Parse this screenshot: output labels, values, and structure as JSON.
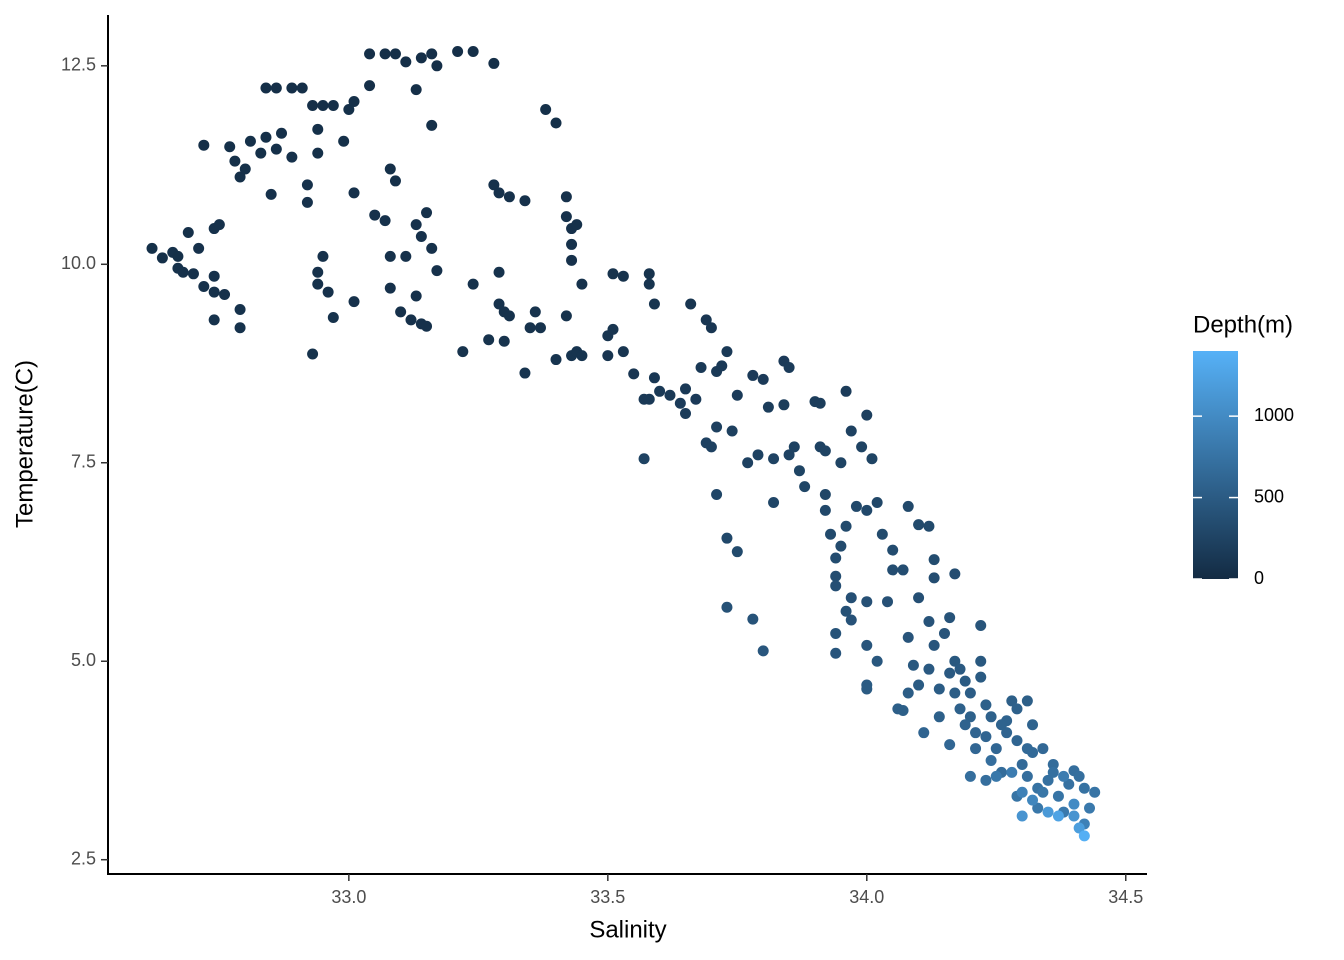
{
  "chart_data": {
    "type": "scatter",
    "x_label": "Salinity",
    "y_label": "Temperature(C)",
    "legend_title": "Depth(m)",
    "xlim": [
      32.535,
      34.541
    ],
    "ylim": [
      2.32,
      13.14
    ],
    "xticks": [
      {
        "value": 33,
        "label": "33.0"
      },
      33.5,
      {
        "value": 34,
        "label": "34.0"
      },
      34.5
    ],
    "yticks": [
      2.5,
      {
        "value": 5,
        "label": "5.0"
      },
      7.5,
      {
        "value": 10,
        "label": "10.0"
      },
      12.5
    ],
    "clim": [
      0,
      1400
    ],
    "cticks": [
      0,
      500,
      1000
    ],
    "color_low": "#132B43",
    "color_high": "#56B1F7",
    "x": [
      32.62,
      32.64,
      32.66,
      32.67,
      32.68,
      32.67,
      32.69,
      32.7,
      32.71,
      32.72,
      32.72,
      32.74,
      32.75,
      32.74,
      32.76,
      32.74,
      32.74,
      32.79,
      32.79,
      32.77,
      32.78,
      32.79,
      32.8,
      32.81,
      32.83,
      32.84,
      32.86,
      32.87,
      32.84,
      32.86,
      32.89,
      32.91,
      32.85,
      32.89,
      32.92,
      32.92,
      32.93,
      32.95,
      32.97,
      32.94,
      32.94,
      32.99,
      33.0,
      33.01,
      32.94,
      32.94,
      32.95,
      32.93,
      32.96,
      32.97,
      33.01,
      33.01,
      33.04,
      33.04,
      33.07,
      33.09,
      33.11,
      33.13,
      33.14,
      33.16,
      33.17,
      33.21,
      33.24,
      33.28,
      33.16,
      33.05,
      33.07,
      33.08,
      33.08,
      33.08,
      33.09,
      33.11,
      33.1,
      33.13,
      33.12,
      33.14,
      33.15,
      33.13,
      33.14,
      33.15,
      33.16,
      33.17,
      33.28,
      33.29,
      33.31,
      33.34,
      33.22,
      33.24,
      33.27,
      33.29,
      33.29,
      33.3,
      33.31,
      33.3,
      33.35,
      33.37,
      33.36,
      33.34,
      33.38,
      33.4,
      33.4,
      33.42,
      33.42,
      33.43,
      33.43,
      33.43,
      33.44,
      33.42,
      33.43,
      33.44,
      33.45,
      33.45,
      33.5,
      33.5,
      33.51,
      33.53,
      33.51,
      33.53,
      33.55,
      33.57,
      33.58,
      33.59,
      33.57,
      33.58,
      33.58,
      33.59,
      33.6,
      33.62,
      33.64,
      33.65,
      33.65,
      33.66,
      33.67,
      33.68,
      33.69,
      33.7,
      33.69,
      33.7,
      33.71,
      33.72,
      33.73,
      33.71,
      33.74,
      33.75,
      33.71,
      33.73,
      33.75,
      33.73,
      33.78,
      33.8,
      33.77,
      33.78,
      33.8,
      33.79,
      33.82,
      33.82,
      33.81,
      33.84,
      33.84,
      33.85,
      33.85,
      33.86,
      33.87,
      33.88,
      33.9,
      33.91,
      33.91,
      33.92,
      33.92,
      33.92,
      33.93,
      33.94,
      33.94,
      33.94,
      33.95,
      33.96,
      33.97,
      33.96,
      33.97,
      33.94,
      33.94,
      33.95,
      33.96,
      33.97,
      33.98,
      33.99,
      34.0,
      34.01,
      34.0,
      34.02,
      34.03,
      34.05,
      34.04,
      34.0,
      34.0,
      34.02,
      34.0,
      34.05,
      34.07,
      34.08,
      34.09,
      34.1,
      34.08,
      34.1,
      34.12,
      34.13,
      34.13,
      34.17,
      34.12,
      34.13,
      34.12,
      34.14,
      34.14,
      34.15,
      34.16,
      34.17,
      34.17,
      34.18,
      34.2,
      34.22,
      34.22,
      34.2,
      34.23,
      34.21,
      34.24,
      34.25,
      34.26,
      34.27,
      34.28,
      34.29,
      34.3,
      34.31,
      34.29,
      34.31,
      34.32,
      34.32,
      34.33,
      34.33,
      34.34,
      34.35,
      34.36,
      34.37,
      34.38,
      34.39,
      34.4,
      34.41,
      34.42,
      34.42,
      34.43,
      34.44,
      34.4,
      34.41,
      34.42,
      34.37,
      34.35,
      34.3,
      34.32,
      34.3,
      34.4,
      34.38,
      34.28,
      34.25,
      34.24,
      34.18,
      34.19,
      34.21,
      34.27,
      34.23,
      34.16,
      34.11,
      34.1,
      34.06,
      34.07,
      34.08,
      34.0,
      34.2,
      34.34,
      34.36,
      34.31,
      34.29,
      34.26,
      34.23,
      34.22,
      34.19,
      34.16
    ],
    "values": [
      10.2,
      10.08,
      10.15,
      9.95,
      9.9,
      10.1,
      10.4,
      9.88,
      10.2,
      9.72,
      11.5,
      10.45,
      10.5,
      9.65,
      9.62,
      9.85,
      9.3,
      9.2,
      9.43,
      11.48,
      11.3,
      11.1,
      11.2,
      11.55,
      11.4,
      11.6,
      11.45,
      11.65,
      12.22,
      12.22,
      12.22,
      12.22,
      10.88,
      11.35,
      10.78,
      11.0,
      12.0,
      12.0,
      12.0,
      11.7,
      11.4,
      11.55,
      11.95,
      12.05,
      9.9,
      9.75,
      10.1,
      8.87,
      9.65,
      9.33,
      10.9,
      9.53,
      12.25,
      12.65,
      12.65,
      12.65,
      12.55,
      12.2,
      12.6,
      12.65,
      12.5,
      12.68,
      12.68,
      12.53,
      11.75,
      10.62,
      10.55,
      10.1,
      9.7,
      11.2,
      11.05,
      10.1,
      9.4,
      9.6,
      9.3,
      9.25,
      9.22,
      10.5,
      10.35,
      10.65,
      10.2,
      9.92,
      11.0,
      10.9,
      10.85,
      10.8,
      8.9,
      9.75,
      9.05,
      9.9,
      9.5,
      9.4,
      9.35,
      9.03,
      9.2,
      9.2,
      9.4,
      8.63,
      11.95,
      11.78,
      8.8,
      10.85,
      10.6,
      10.45,
      10.25,
      10.05,
      10.5,
      9.35,
      8.85,
      8.9,
      8.85,
      9.75,
      9.1,
      8.85,
      9.18,
      8.9,
      9.88,
      9.85,
      8.62,
      8.3,
      8.3,
      8.57,
      7.55,
      9.88,
      9.75,
      9.5,
      8.4,
      8.35,
      8.25,
      8.43,
      8.12,
      9.5,
      8.3,
      8.7,
      9.3,
      9.2,
      7.75,
      7.7,
      8.65,
      8.72,
      8.9,
      7.95,
      7.9,
      8.35,
      7.1,
      6.55,
      6.38,
      5.68,
      5.53,
      5.13,
      7.5,
      8.6,
      8.55,
      7.6,
      7.55,
      7.0,
      8.2,
      8.23,
      8.78,
      8.7,
      7.6,
      7.7,
      7.4,
      7.2,
      8.27,
      8.25,
      7.7,
      7.65,
      7.1,
      6.9,
      6.6,
      6.3,
      6.07,
      5.95,
      6.45,
      6.7,
      5.8,
      5.63,
      5.52,
      5.35,
      5.1,
      7.5,
      8.4,
      7.9,
      6.95,
      7.7,
      8.1,
      7.55,
      6.9,
      7.0,
      6.6,
      6.4,
      5.75,
      5.75,
      5.2,
      5.0,
      4.7,
      6.15,
      6.15,
      5.3,
      4.95,
      5.8,
      6.95,
      6.72,
      6.7,
      6.28,
      6.05,
      6.1,
      5.5,
      5.2,
      4.9,
      4.65,
      4.3,
      5.35,
      5.55,
      5.0,
      4.6,
      4.9,
      4.6,
      5.0,
      5.45,
      4.3,
      4.05,
      3.9,
      4.3,
      3.9,
      3.6,
      4.1,
      4.5,
      4.0,
      3.7,
      3.55,
      3.3,
      4.5,
      4.2,
      3.85,
      3.4,
      3.15,
      3.9,
      3.5,
      3.7,
      3.3,
      3.1,
      3.45,
      3.62,
      3.55,
      3.4,
      2.95,
      3.15,
      3.35,
      3.05,
      2.9,
      2.8,
      3.05,
      3.1,
      3.05,
      3.25,
      3.35,
      3.2,
      3.55,
      3.6,
      3.55,
      3.75,
      4.4,
      4.2,
      4.1,
      4.25,
      3.5,
      3.95,
      4.1,
      4.7,
      4.4,
      4.38,
      4.6,
      4.65,
      3.55,
      3.35,
      3.6,
      3.9,
      4.4,
      4.2,
      4.45,
      4.8,
      4.75,
      4.85
    ],
    "depth": [
      50,
      50,
      60,
      60,
      60,
      50,
      50,
      60,
      60,
      60,
      40,
      60,
      60,
      60,
      60,
      60,
      70,
      70,
      70,
      50,
      50,
      50,
      50,
      50,
      50,
      50,
      50,
      50,
      40,
      40,
      40,
      40,
      60,
      60,
      60,
      60,
      40,
      40,
      40,
      50,
      50,
      50,
      50,
      50,
      60,
      60,
      60,
      70,
      60,
      70,
      60,
      60,
      40,
      40,
      40,
      40,
      40,
      40,
      40,
      40,
      40,
      40,
      40,
      40,
      50,
      60,
      60,
      60,
      60,
      50,
      50,
      60,
      60,
      60,
      60,
      60,
      60,
      60,
      60,
      60,
      60,
      60,
      60,
      60,
      60,
      60,
      80,
      70,
      80,
      70,
      70,
      70,
      70,
      80,
      80,
      80,
      80,
      90,
      50,
      50,
      90,
      60,
      60,
      60,
      60,
      60,
      60,
      80,
      90,
      90,
      90,
      70,
      100,
      100,
      100,
      100,
      80,
      80,
      120,
      150,
      150,
      130,
      250,
      80,
      90,
      100,
      150,
      150,
      170,
      150,
      180,
      100,
      160,
      150,
      120,
      120,
      230,
      230,
      150,
      150,
      150,
      220,
      220,
      170,
      280,
      300,
      320,
      400,
      420,
      450,
      230,
      160,
      160,
      240,
      250,
      280,
      190,
      190,
      160,
      170,
      240,
      240,
      260,
      280,
      190,
      190,
      240,
      250,
      280,
      300,
      320,
      340,
      360,
      370,
      330,
      320,
      380,
      400,
      410,
      420,
      440,
      260,
      180,
      230,
      300,
      250,
      210,
      260,
      300,
      290,
      330,
      340,
      390,
      390,
      440,
      460,
      500,
      360,
      360,
      430,
      470,
      380,
      300,
      320,
      320,
      340,
      360,
      360,
      420,
      440,
      480,
      510,
      550,
      430,
      420,
      470,
      520,
      480,
      520,
      470,
      430,
      560,
      600,
      620,
      560,
      620,
      680,
      600,
      540,
      610,
      660,
      700,
      760,
      540,
      580,
      650,
      740,
      800,
      640,
      720,
      680,
      760,
      820,
      730,
      700,
      710,
      740,
      900,
      820,
      760,
      1100,
      1200,
      1380,
      1250,
      1150,
      1100,
      950,
      900,
      1000,
      850,
      850,
      800,
      700,
      560,
      580,
      600,
      580,
      700,
      620,
      600,
      500,
      540,
      540,
      520,
      500,
      700,
      780,
      720,
      650,
      560,
      580,
      550,
      490,
      500,
      480
    ]
  }
}
